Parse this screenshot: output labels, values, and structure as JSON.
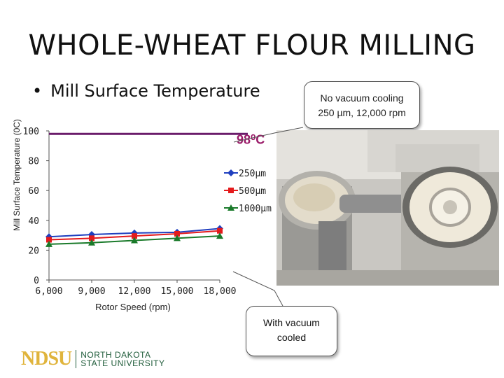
{
  "slide": {
    "title": "WHOLE-WHEAT FLOUR MILLING",
    "bullet": "Mill Surface Temperature",
    "callout_top": {
      "line1": "No vacuum cooling",
      "line2": "250 µm, 12,000 rpm"
    },
    "callout_bottom": {
      "line1": "With vacuum",
      "line2": "cooled"
    },
    "logo": {
      "mark": "NDSU",
      "line1": "NORTH DAKOTA",
      "line2": "STATE UNIVERSITY"
    },
    "photo_icon": "mill-photo"
  },
  "chart_data": {
    "type": "line",
    "title": "",
    "xlabel": "Rotor Speed (rpm)",
    "ylabel": "Mill Surface Temperature (0C)",
    "xlim": [
      6000,
      18000
    ],
    "ylim": [
      0,
      100
    ],
    "x_ticks": [
      "6,000",
      "9,000",
      "12,000",
      "15,000",
      "18,000"
    ],
    "y_ticks": [
      "0",
      "20",
      "40",
      "60",
      "80",
      "100"
    ],
    "x": [
      6000,
      9000,
      12000,
      15000,
      18000
    ],
    "series": [
      {
        "name": "250µm",
        "color": "#1f3fbf",
        "marker": "diamond",
        "values": [
          29,
          30.5,
          31.5,
          32,
          34.5
        ]
      },
      {
        "name": "500µm",
        "color": "#e41a1c",
        "marker": "square",
        "values": [
          27,
          28,
          29.5,
          31,
          33
        ]
      },
      {
        "name": "1000µm",
        "color": "#1a7a2a",
        "marker": "triangle",
        "values": [
          24,
          25,
          26.5,
          28,
          29.5
        ]
      }
    ],
    "reference_line": {
      "value": 98,
      "label": "98⁰C",
      "color": "#6a1b6a"
    },
    "legend_position": "right",
    "grid": false
  }
}
